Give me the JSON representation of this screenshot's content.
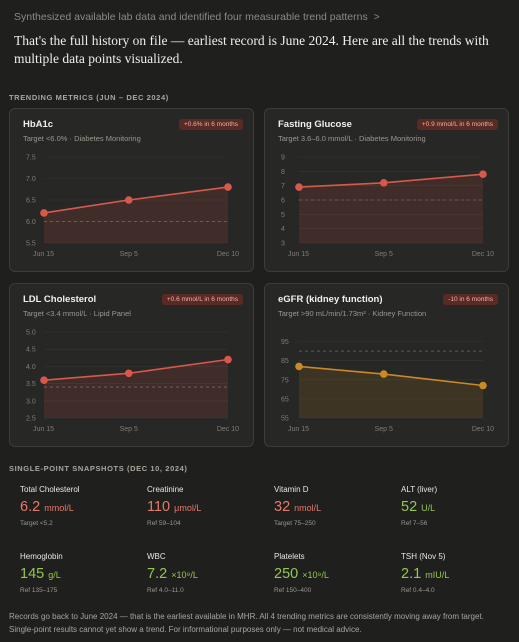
{
  "header": {
    "status_text": "Synthesized available lab data and identified four measurable trend patterns",
    "intro_text": "That's the full history on file — earliest record is June 2024. Here are all the trends with multiple data points visualized."
  },
  "sections": {
    "trending_label": "TRENDING METRICS (JUN – DEC 2024)",
    "snapshots_label": "SINGLE-POINT SNAPSHOTS (DEC 10, 2024)"
  },
  "colors": {
    "red_line": "#d9584c",
    "orange_line": "#c98a25",
    "gain_good": "#93c755",
    "alert": "#e57a6c"
  },
  "chart_data": [
    {
      "type": "line",
      "title": "HbA1c",
      "subtitle": "Target <6.0% · Diabetes Monitoring",
      "badge": "+0.6% in 6 months",
      "categories": [
        "Jun 15",
        "Sep 5",
        "Dec 10"
      ],
      "x": [
        "2024-06-15",
        "2024-09-05",
        "2024-12-10"
      ],
      "values": [
        6.2,
        6.5,
        6.8
      ],
      "ylim": [
        5.5,
        7.5
      ],
      "yticks": [
        "7.5",
        "7.0",
        "6.5",
        "6.0",
        "5.5"
      ],
      "target": 6.0,
      "color": "#d9584c"
    },
    {
      "type": "line",
      "title": "Fasting Glucose",
      "subtitle": "Target 3.6–6.0 mmol/L · Diabetes Monitoring",
      "badge": "+0.9 mmol/L in 6 months",
      "categories": [
        "Jun 15",
        "Sep 5",
        "Dec 10"
      ],
      "x": [
        "2024-06-15",
        "2024-09-05",
        "2024-12-10"
      ],
      "values": [
        6.9,
        7.2,
        7.8
      ],
      "ylim": [
        3,
        9
      ],
      "yticks": [
        "9",
        "8",
        "7",
        "6",
        "5",
        "4",
        "3"
      ],
      "target": 6.0,
      "color": "#d9584c"
    },
    {
      "type": "line",
      "title": "LDL Cholesterol",
      "subtitle": "Target <3.4 mmol/L · Lipid Panel",
      "badge": "+0.6 mmol/L in 6 months",
      "categories": [
        "Jun 15",
        "Sep 5",
        "Dec 10"
      ],
      "x": [
        "2024-06-15",
        "2024-09-05",
        "2024-12-10"
      ],
      "values": [
        3.6,
        3.8,
        4.2
      ],
      "ylim": [
        2.5,
        5.0
      ],
      "yticks": [
        "5.0",
        "4.5",
        "4.0",
        "3.5",
        "3.0",
        "2.5"
      ],
      "target": 3.4,
      "color": "#d9584c"
    },
    {
      "type": "line",
      "title": "eGFR (kidney function)",
      "subtitle": "Target >90 mL/min/1.73m² · Kidney Function",
      "badge": "-10 in 6 months",
      "categories": [
        "Jun 15",
        "Sep 5",
        "Dec 10"
      ],
      "x": [
        "2024-06-15",
        "2024-09-05",
        "2024-12-10"
      ],
      "values": [
        82,
        78,
        72
      ],
      "ylim": [
        55,
        100
      ],
      "yticks": [
        "95",
        "85",
        "75",
        "65",
        "55"
      ],
      "target": 90,
      "color": "#c98a25"
    }
  ],
  "snapshots": [
    {
      "name": "Total Cholesterol",
      "value": "6.2",
      "unit": "mmol/L",
      "ref": "Target <5.2",
      "status": "red"
    },
    {
      "name": "Creatinine",
      "value": "110",
      "unit": "μmol/L",
      "ref": "Ref 59–104",
      "status": "red"
    },
    {
      "name": "Vitamin D",
      "value": "32",
      "unit": "nmol/L",
      "ref": "Target 75–250",
      "status": "red"
    },
    {
      "name": "ALT (liver)",
      "value": "52",
      "unit": "U/L",
      "ref": "Ref 7–56",
      "status": "green"
    },
    {
      "name": "Hemoglobin",
      "value": "145",
      "unit": "g/L",
      "ref": "Ref 135–175",
      "status": "green"
    },
    {
      "name": "WBC",
      "value": "7.2",
      "unit": "×10⁹/L",
      "ref": "Ref 4.0–11.0",
      "status": "green"
    },
    {
      "name": "Platelets",
      "value": "250",
      "unit": "×10⁹/L",
      "ref": "Ref 150–400",
      "status": "green"
    },
    {
      "name": "TSH (Nov 5)",
      "value": "2.1",
      "unit": "mIU/L",
      "ref": "Ref 0.4–4.0",
      "status": "green"
    }
  ],
  "footer": {
    "text": "Records go back to June 2024 — that is the earliest available in MHR. All 4 trending metrics are consistently moving away from target. Single-point results cannot yet show a trend. For informational purposes only — not medical advice."
  }
}
